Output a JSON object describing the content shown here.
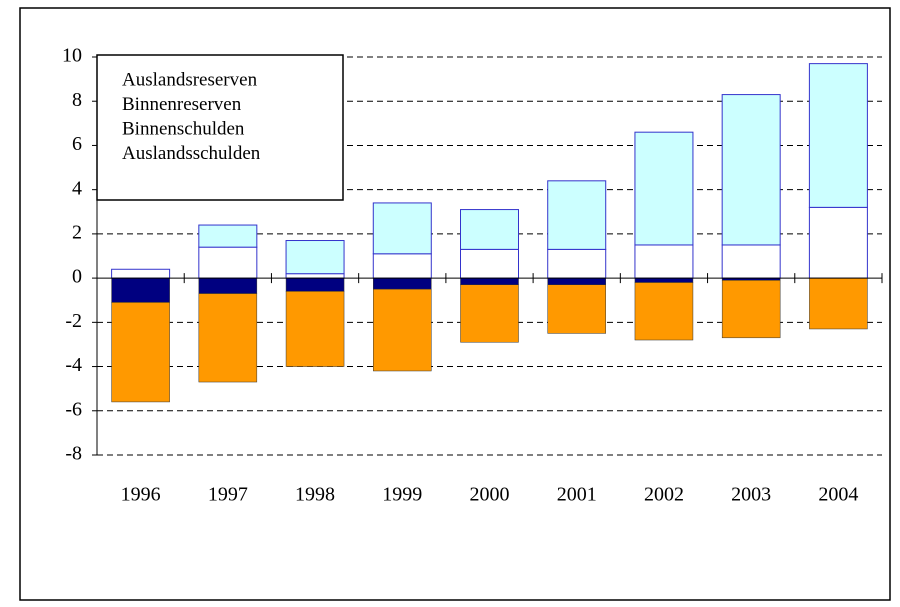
{
  "chart_data": {
    "type": "bar",
    "categories": [
      "1996",
      "1997",
      "1998",
      "1999",
      "2000",
      "2001",
      "2002",
      "2003",
      "2004"
    ],
    "series": [
      {
        "name": "Auslandsreserven",
        "color": "#ccffff",
        "values": [
          0,
          1.0,
          1.5,
          2.3,
          1.8,
          3.1,
          5.1,
          6.8,
          6.5
        ]
      },
      {
        "name": "Binnenreserven",
        "color": "#ffffff",
        "values": [
          0.4,
          1.4,
          0.2,
          1.1,
          1.3,
          1.3,
          1.5,
          1.5,
          3.2
        ]
      },
      {
        "name": "Binnenschulden",
        "color": "#000080",
        "values": [
          -1.1,
          -0.7,
          -0.6,
          -0.5,
          -0.3,
          -0.3,
          -0.2,
          -0.1,
          0
        ]
      },
      {
        "name": "Auslandsschulden",
        "color": "#ff9900",
        "values": [
          -4.5,
          -4.0,
          -3.4,
          -3.7,
          -2.6,
          -2.2,
          -2.6,
          -2.6,
          -2.3
        ]
      }
    ],
    "ylim": [
      -8,
      10
    ],
    "yticks": [
      -8,
      -6,
      -4,
      -2,
      0,
      2,
      4,
      6,
      8,
      10
    ],
    "grid": true
  }
}
